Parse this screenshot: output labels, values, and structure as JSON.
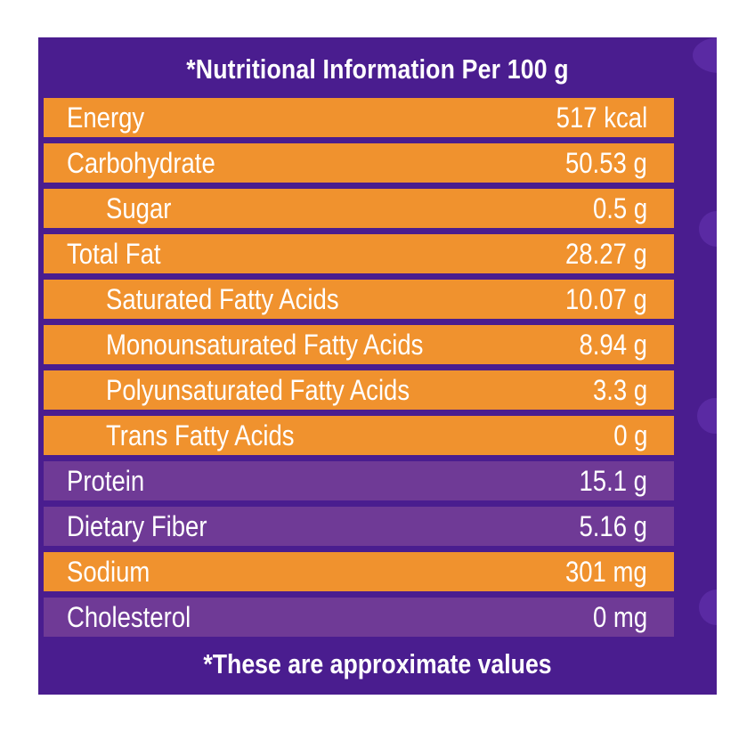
{
  "header": {
    "title": "*Nutritional Information Per 100 g"
  },
  "rows": [
    {
      "label": "Energy",
      "value": "517 kcal",
      "indent": false,
      "color": "#f0922e"
    },
    {
      "label": "Carbohydrate",
      "value": "50.53 g",
      "indent": false,
      "color": "#f0922e"
    },
    {
      "label": "Sugar",
      "value": "0.5 g",
      "indent": true,
      "color": "#f0922e"
    },
    {
      "label": "Total Fat",
      "value": "28.27 g",
      "indent": false,
      "color": "#f0922e"
    },
    {
      "label": "Saturated Fatty Acids",
      "value": "10.07 g",
      "indent": true,
      "color": "#f0922e"
    },
    {
      "label": "Monounsaturated Fatty Acids",
      "value": "8.94 g",
      "indent": true,
      "color": "#f0922e"
    },
    {
      "label": "Polyunsaturated Fatty Acids",
      "value": "3.3 g",
      "indent": true,
      "color": "#f0922e"
    },
    {
      "label": "Trans Fatty Acids",
      "value": "0 g",
      "indent": true,
      "color": "#f0922e"
    },
    {
      "label": "Protein",
      "value": "15.1 g",
      "indent": false,
      "color": "#6f3a96"
    },
    {
      "label": "Dietary Fiber",
      "value": "5.16 g",
      "indent": false,
      "color": "#6f3a96"
    },
    {
      "label": "Sodium",
      "value": "301 mg",
      "indent": false,
      "color": "#f0922e"
    },
    {
      "label": "Cholesterol",
      "value": "0 mg",
      "indent": false,
      "color": "#6f3a96"
    }
  ],
  "footer": {
    "note": "*These are approximate values"
  },
  "colors": {
    "background": "#4a1d8f",
    "orange_row": "#f0922e",
    "purple_row": "#6f3a96",
    "text": "#ffffff"
  }
}
